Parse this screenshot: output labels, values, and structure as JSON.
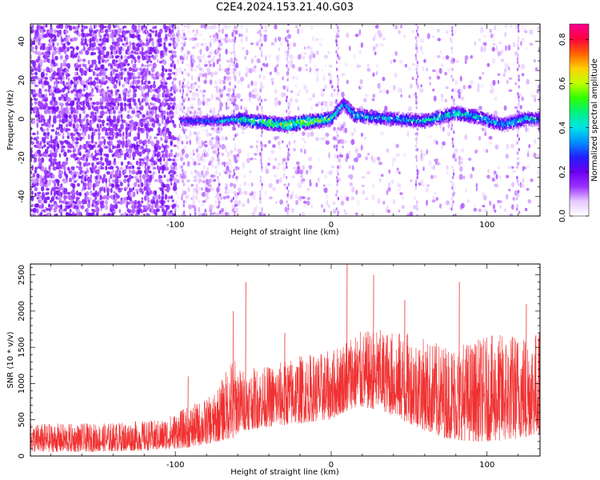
{
  "title": "C2E4.2024.153.21.40.G03",
  "chart_data": [
    {
      "type": "heatmap",
      "xlabel": "Height of straight line (km)",
      "ylabel": "Frequency (Hz)",
      "xlim": [
        -193,
        134
      ],
      "ylim": [
        -50,
        49
      ],
      "x_ticks": [
        "-100",
        "0",
        "100"
      ],
      "y_ticks": [
        "-40",
        "-20",
        "0",
        "20",
        "40"
      ],
      "colorbar": {
        "label": "Normalized spectral amplitude",
        "range": [
          0,
          0.87
        ],
        "ticks": [
          "0.0",
          "0.2",
          "0.4",
          "0.6",
          "0.8"
        ],
        "colors": [
          "#ffffff",
          "#e6c8ff",
          "#9b30ff",
          "#6a00f0",
          "#2020ff",
          "#0090ff",
          "#00e5e5",
          "#00f080",
          "#30ff00",
          "#c0ff00",
          "#ffd000",
          "#ff6000",
          "#ff0040",
          "#ff0090"
        ]
      },
      "ridge": [
        {
          "x": -95,
          "y": -1,
          "v": 0.35
        },
        {
          "x": -80,
          "y": -1,
          "v": 0.4
        },
        {
          "x": -70,
          "y": -1,
          "v": 0.45
        },
        {
          "x": -60,
          "y": 0,
          "v": 0.55
        },
        {
          "x": -50,
          "y": -1,
          "v": 0.6
        },
        {
          "x": -40,
          "y": -2,
          "v": 0.7
        },
        {
          "x": -30,
          "y": -3,
          "v": 0.75
        },
        {
          "x": -20,
          "y": -2,
          "v": 0.8
        },
        {
          "x": -10,
          "y": -1,
          "v": 0.7
        },
        {
          "x": 0,
          "y": 0,
          "v": 0.6
        },
        {
          "x": 8,
          "y": 8,
          "v": 0.45
        },
        {
          "x": 15,
          "y": 2,
          "v": 0.5
        },
        {
          "x": 25,
          "y": 1,
          "v": 0.5
        },
        {
          "x": 40,
          "y": 0,
          "v": 0.45
        },
        {
          "x": 60,
          "y": -1,
          "v": 0.5
        },
        {
          "x": 80,
          "y": 3,
          "v": 0.55
        },
        {
          "x": 95,
          "y": 1,
          "v": 0.5
        },
        {
          "x": 110,
          "y": -3,
          "v": 0.45
        },
        {
          "x": 125,
          "y": 0,
          "v": 0.5
        },
        {
          "x": 134,
          "y": 0,
          "v": 0.45
        }
      ]
    },
    {
      "type": "line",
      "xlabel": "Height of straight line (km)",
      "ylabel": "SNR (10 * v/v)",
      "xlim": [
        -193,
        134
      ],
      "ylim": [
        0,
        2650
      ],
      "x_ticks": [
        "-100",
        "0",
        "100"
      ],
      "y_ticks": [
        "0",
        "500",
        "1000",
        "1500",
        "2000",
        "2500"
      ],
      "series_color": "#f03030",
      "envelope": [
        {
          "x": -193,
          "low": 50,
          "high": 450
        },
        {
          "x": -150,
          "low": 60,
          "high": 450
        },
        {
          "x": -110,
          "low": 80,
          "high": 500
        },
        {
          "x": -90,
          "low": 120,
          "high": 700
        },
        {
          "x": -75,
          "low": 180,
          "high": 850
        },
        {
          "x": -63,
          "low": 250,
          "high": 1400
        },
        {
          "x": -58,
          "low": 350,
          "high": 1200
        },
        {
          "x": -40,
          "low": 400,
          "high": 1250
        },
        {
          "x": -20,
          "low": 450,
          "high": 1400
        },
        {
          "x": 0,
          "low": 500,
          "high": 1450
        },
        {
          "x": 12,
          "low": 650,
          "high": 1700
        },
        {
          "x": 30,
          "low": 650,
          "high": 1750
        },
        {
          "x": 50,
          "low": 450,
          "high": 1700
        },
        {
          "x": 70,
          "low": 250,
          "high": 1550
        },
        {
          "x": 90,
          "low": 200,
          "high": 1600
        },
        {
          "x": 110,
          "low": 200,
          "high": 1700
        },
        {
          "x": 134,
          "low": 300,
          "high": 1750
        }
      ],
      "peaks": [
        {
          "x": -92,
          "y": 1100
        },
        {
          "x": -63,
          "y": 2000
        },
        {
          "x": -55,
          "y": 2400
        },
        {
          "x": -30,
          "y": 1700
        },
        {
          "x": 10,
          "y": 2650
        },
        {
          "x": 27,
          "y": 2500
        },
        {
          "x": 47,
          "y": 2150
        },
        {
          "x": 82,
          "y": 2400
        },
        {
          "x": 125,
          "y": 2100
        }
      ]
    }
  ]
}
